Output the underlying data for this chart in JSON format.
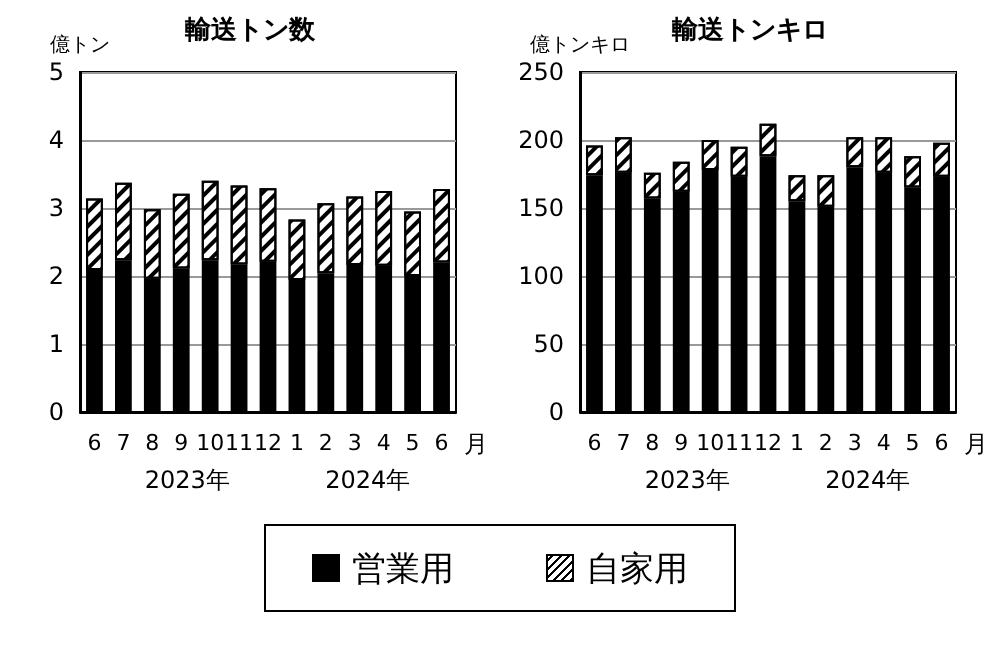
{
  "chart_data": [
    {
      "type": "bar",
      "title": "輸送トン数",
      "ylabel": "億トン",
      "xlabel": "月",
      "stacked": true,
      "categories": [
        "6",
        "7",
        "8",
        "9",
        "10",
        "11",
        "12",
        "1",
        "2",
        "3",
        "4",
        "5",
        "6"
      ],
      "series": [
        {
          "name": "営業用",
          "color": "#000000",
          "values": [
            2.09,
            2.23,
            1.96,
            2.11,
            2.23,
            2.17,
            2.21,
            1.94,
            2.04,
            2.16,
            2.15,
            2.0,
            2.2
          ]
        },
        {
          "name": "自家用",
          "color": "#ffffff",
          "values": [
            1.05,
            1.14,
            1.02,
            1.1,
            1.17,
            1.16,
            1.08,
            0.89,
            1.03,
            1.01,
            1.1,
            0.95,
            1.08
          ]
        }
      ],
      "ylim": [
        0,
        5
      ],
      "yticks": [
        0,
        1,
        2,
        3,
        4,
        5
      ],
      "grid": "y",
      "legend": "bottom",
      "annotations": [
        "2023年",
        "2024年"
      ]
    },
    {
      "type": "bar",
      "title": "輸送トンキロ",
      "ylabel": "億トンキロ",
      "xlabel": "月",
      "stacked": true,
      "categories": [
        "6",
        "7",
        "8",
        "9",
        "10",
        "11",
        "12",
        "1",
        "2",
        "3",
        "4",
        "5",
        "6"
      ],
      "series": [
        {
          "color": "#000000",
          "values": [
            174,
            176,
            157,
            162,
            178,
            173,
            188,
            155,
            151,
            180,
            176,
            165,
            173
          ]
        },
        {
          "color": "#ffffff",
          "values": [
            22,
            26,
            19,
            22,
            22,
            22,
            24,
            19,
            23,
            22,
            26,
            23,
            25
          ]
        }
      ],
      "ylim": [
        0,
        250
      ],
      "yticks": [
        0,
        50,
        100,
        150,
        200,
        250
      ],
      "grid": "y",
      "annotations": [
        "2023年",
        "2024年"
      ]
    }
  ]
}
